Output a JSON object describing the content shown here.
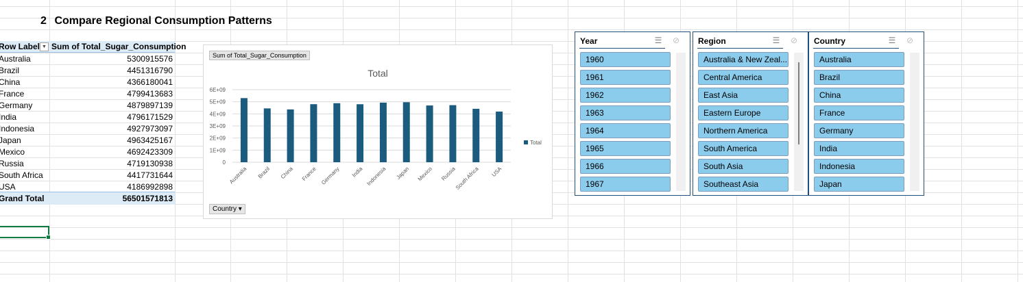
{
  "heading": {
    "number": "2",
    "text": "Compare Regional Consumption Patterns"
  },
  "pivot": {
    "col1": "Row Labels",
    "col2": "Sum of Total_Sugar_Consumption",
    "rows": [
      {
        "label": "Australia",
        "value": "5300915576"
      },
      {
        "label": "Brazil",
        "value": "4451316790"
      },
      {
        "label": "China",
        "value": "4366180041"
      },
      {
        "label": "France",
        "value": "4799413683"
      },
      {
        "label": "Germany",
        "value": "4879897139"
      },
      {
        "label": "India",
        "value": "4796171529"
      },
      {
        "label": "Indonesia",
        "value": "4927973097"
      },
      {
        "label": "Japan",
        "value": "4963425167"
      },
      {
        "label": "Mexico",
        "value": "4692423309"
      },
      {
        "label": "Russia",
        "value": "4719130938"
      },
      {
        "label": "South Africa",
        "value": "4417731644"
      },
      {
        "label": "USA",
        "value": "4186992898"
      }
    ],
    "total_label": "Grand Total",
    "total_value": "56501571813"
  },
  "chart_data": {
    "type": "bar",
    "title": "Total",
    "field_button": "Sum of Total_Sugar_Consumption",
    "axis_button": "Country",
    "categories": [
      "Australia",
      "Brazil",
      "China",
      "France",
      "Germany",
      "India",
      "Indonesia",
      "Japan",
      "Mexico",
      "Russia",
      "South Africa",
      "USA"
    ],
    "series": [
      {
        "name": "Total",
        "values": [
          5300915576,
          4451316790,
          4366180041,
          4799413683,
          4879897139,
          4796171529,
          4927973097,
          4963425167,
          4692423309,
          4719130938,
          4417731644,
          4186992898
        ]
      }
    ],
    "ylim": [
      0,
      6000000000
    ],
    "yticks": [
      "0",
      "1E+09",
      "2E+09",
      "3E+09",
      "4E+09",
      "5E+09",
      "6E+09"
    ],
    "grid": true,
    "legend": "right",
    "bar_color": "#1a5b7e"
  },
  "slicers": [
    {
      "title": "Year",
      "items": [
        "1960",
        "1961",
        "1962",
        "1963",
        "1964",
        "1965",
        "1966",
        "1967"
      ]
    },
    {
      "title": "Region",
      "items": [
        "Australia & New Zeal...",
        "Central America",
        "East Asia",
        "Eastern Europe",
        "Northern America",
        "South America",
        "South Asia",
        "Southeast Asia"
      ]
    },
    {
      "title": "Country",
      "items": [
        "Australia",
        "Brazil",
        "China",
        "France",
        "Germany",
        "India",
        "Indonesia",
        "Japan"
      ]
    }
  ],
  "icons": {
    "multi_select": "multi-select-icon",
    "clear_filter": "clear-filter-icon"
  }
}
